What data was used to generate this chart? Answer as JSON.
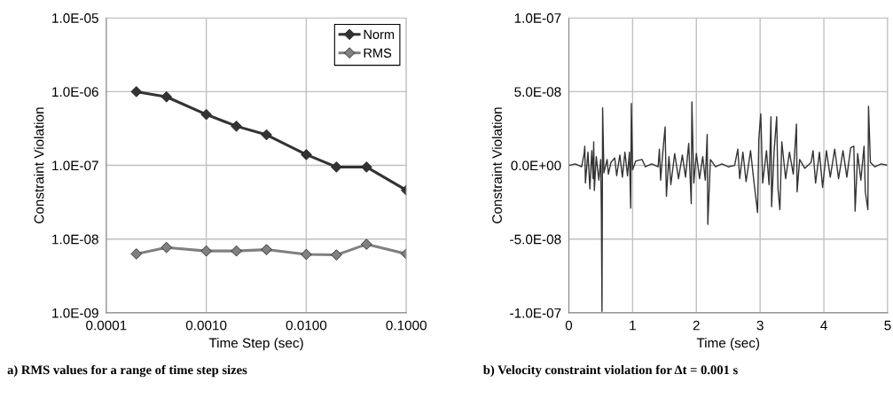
{
  "chart_data": [
    {
      "type": "line",
      "xlabel": "Time Step (sec)",
      "ylabel": "Constraint Violation",
      "log": "xy",
      "grid": true,
      "legend": "top right",
      "marker": "diamond",
      "line_style": "solid",
      "x": [
        0.0002,
        0.0004,
        0.001,
        0.002,
        0.004,
        0.01,
        0.02,
        0.04,
        0.1
      ],
      "series": [
        {
          "name": "Norm",
          "color": "#333333",
          "values": [
            1e-06,
            8.5e-07,
            4.9e-07,
            3.4e-07,
            2.6e-07,
            1.4e-07,
            9.5e-08,
            9.5e-08,
            4.6e-08
          ]
        },
        {
          "name": "RMS",
          "color": "#808080",
          "values": [
            6.3e-09,
            7.7e-09,
            6.9e-09,
            6.9e-09,
            7.2e-09,
            6.2e-09,
            6.1e-09,
            8.5e-09,
            6.3e-09
          ]
        }
      ],
      "xlim": [
        0.0001,
        0.1
      ],
      "xticks": [
        {
          "value": 0.0001,
          "label": "0.0001"
        },
        {
          "value": 0.001,
          "label": "0.0010"
        },
        {
          "value": 0.01,
          "label": "0.0100"
        },
        {
          "value": 0.1,
          "label": "0.1000"
        }
      ],
      "ylim": [
        1e-09,
        1e-05
      ],
      "yticks": [
        {
          "value": 1e-09,
          "label": "1.0E-09"
        },
        {
          "value": 1e-08,
          "label": "1.0E-08"
        },
        {
          "value": 1e-07,
          "label": "1.0E-07"
        },
        {
          "value": 1e-06,
          "label": "1.0E-06"
        },
        {
          "value": 1e-05,
          "label": "1.0E-05"
        }
      ],
      "annotations": [
        "a) RMS values for a range of time step sizes"
      ]
    },
    {
      "type": "line",
      "xlabel": "Time (sec)",
      "ylabel": "Constraint Violation",
      "grid": true,
      "line_style": "solid",
      "x": [
        0.0,
        0.1,
        0.2,
        0.24,
        0.25,
        0.26,
        0.3,
        0.33,
        0.36,
        0.38,
        0.39,
        0.4,
        0.43,
        0.47,
        0.5,
        0.51,
        0.52,
        0.53,
        0.55,
        0.6,
        0.62,
        0.66,
        0.72,
        0.75,
        0.8,
        0.84,
        0.88,
        0.92,
        0.95,
        0.97,
        0.98,
        1.0,
        1.05,
        1.15,
        1.2,
        1.3,
        1.4,
        1.42,
        1.44,
        1.47,
        1.51,
        1.53,
        1.57,
        1.6,
        1.66,
        1.72,
        1.78,
        1.83,
        1.88,
        1.92,
        1.93,
        1.96,
        2.0,
        2.05,
        2.1,
        2.14,
        2.17,
        2.18,
        2.22,
        2.3,
        2.4,
        2.5,
        2.6,
        2.65,
        2.68,
        2.73,
        2.78,
        2.85,
        2.9,
        2.96,
        2.98,
        3.01,
        3.04,
        3.1,
        3.14,
        3.17,
        3.18,
        3.22,
        3.26,
        3.28,
        3.31,
        3.34,
        3.4,
        3.46,
        3.52,
        3.57,
        3.58,
        3.62,
        3.7,
        3.8,
        3.83,
        3.87,
        3.93,
        3.98,
        4.04,
        4.1,
        4.17,
        4.23,
        4.3,
        4.36,
        4.42,
        4.47,
        4.49,
        4.53,
        4.58,
        4.63,
        4.65,
        4.69,
        4.7,
        4.73,
        4.8,
        4.9,
        5.0
      ],
      "series": [
        {
          "color": "#333333",
          "values": [
            0.0,
            1e-09,
            -1e-09,
            8e-09,
            1.3e-08,
            -1.2e-08,
            9e-09,
            -1.6e-08,
            1e-08,
            -9e-09,
            1.6e-08,
            -1.7e-08,
            6e-09,
            -1e-08,
            4e-09,
            -3.1e-08,
            -9.9e-08,
            3.9e-08,
            -5e-09,
            4e-09,
            -6e-09,
            2e-09,
            5e-09,
            -7e-09,
            7e-09,
            -8e-09,
            9e-09,
            -7e-09,
            9e-09,
            -2.9e-08,
            4.2e-08,
            -3e-09,
            3e-09,
            4e-09,
            -1e-09,
            1e-09,
            -1e-09,
            1.1e-08,
            -1e-08,
            7e-09,
            2.6e-08,
            -2.1e-08,
            6e-09,
            -1.3e-08,
            8e-09,
            -9e-09,
            7e-09,
            -8e-09,
            1.5e-08,
            -2.6e-08,
            4.3e-08,
            -1.2e-08,
            8e-09,
            -9e-09,
            6e-09,
            -1e-08,
            2.1e-08,
            -4e-08,
            4e-09,
            -1e-09,
            1e-09,
            -1e-09,
            0.0,
            1.1e-08,
            -9e-09,
            9e-09,
            -1.1e-08,
            1e-08,
            -1e-08,
            -3.2e-08,
            1.8e-08,
            3.5e-08,
            -1.2e-08,
            1e-08,
            -1.3e-08,
            3.3e-08,
            -2.8e-08,
            1e-08,
            3.3e-08,
            -1.6e-08,
            -3e-08,
            1.6e-08,
            -9e-09,
            9e-09,
            -6e-09,
            2.8e-08,
            -1.8e-08,
            4e-09,
            -2e-09,
            2e-09,
            1e-08,
            -1.2e-08,
            9e-09,
            -1.5e-08,
            1e-08,
            -8e-09,
            1.1e-08,
            -9e-09,
            1e-08,
            -8e-09,
            1.2e-08,
            1.3e-08,
            -3.1e-08,
            8e-09,
            -1e-08,
            1.3e-08,
            -1.8e-08,
            -3e-08,
            4e-08,
            2e-09,
            -1e-09,
            1e-09,
            0.0
          ]
        }
      ],
      "xlim": [
        0,
        5
      ],
      "xticks": [
        0,
        1,
        2,
        3,
        4,
        5
      ],
      "ylim": [
        -1e-07,
        1e-07
      ],
      "yticks": [
        {
          "value": -1e-07,
          "label": "-1.0E-07"
        },
        {
          "value": -5e-08,
          "label": "-5.0E-08"
        },
        {
          "value": 0,
          "label": "0.0E+00"
        },
        {
          "value": 5e-08,
          "label": "5.0E-08"
        },
        {
          "value": 1e-07,
          "label": "1.0E-07"
        }
      ],
      "annotations": [
        "b) Velocity constraint violation for Δt = 0.001 s"
      ]
    }
  ]
}
